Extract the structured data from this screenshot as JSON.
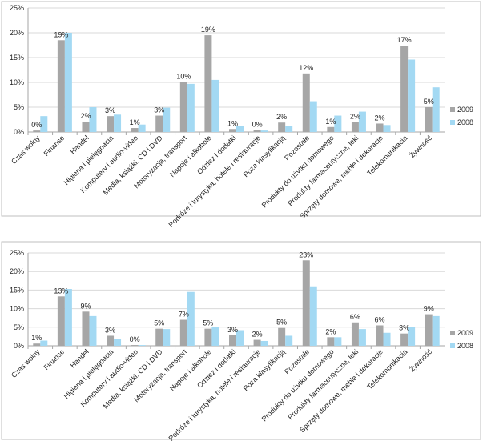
{
  "colors": {
    "series2009": "#a6a6a6",
    "series2008": "#a3d9f3"
  },
  "chart_data": [
    {
      "type": "bar",
      "ylim": [
        0,
        25
      ],
      "yticks": [
        "0%",
        "5%",
        "10%",
        "15%",
        "20%",
        "25%"
      ],
      "categories": [
        "Czas wolny",
        "Finanse",
        "Handel",
        "Higiena i pielęgnacja",
        "Komputery i audio-video",
        "Media, książki, CD i DVD",
        "Motoryzacja, transport",
        "Napoje i alkohole",
        "Odzież i dodatki",
        "Podróże i turystyka, hotele i restauracje",
        "Poza klasyfikacją",
        "Pozostałe",
        "Produkty do użytku domowego",
        "Produkty farmaceutyczne, leki",
        "Sprzęty domowe, meble i dekoracje",
        "Telekomunikacja",
        "Żywność"
      ],
      "series": [
        {
          "name": "2009",
          "values": [
            0.3,
            18.5,
            2.1,
            3.2,
            0.8,
            3.3,
            10.1,
            19.5,
            0.6,
            0.4,
            1.9,
            11.8,
            1.0,
            2.0,
            1.7,
            17.4,
            5.0
          ],
          "labels": [
            "0%",
            "19%",
            "2%",
            "3%",
            "1%",
            "3%",
            "10%",
            "19%",
            "1%",
            "0%",
            "2%",
            "12%",
            "1%",
            "2%",
            "2%",
            "17%",
            "5%"
          ]
        },
        {
          "name": "2008",
          "values": [
            3.2,
            20.0,
            5.0,
            3.5,
            1.5,
            4.9,
            9.7,
            10.5,
            1.2,
            0.3,
            1.2,
            6.2,
            3.3,
            4.1,
            1.4,
            14.6,
            9.0
          ]
        }
      ]
    },
    {
      "type": "bar",
      "ylim": [
        0,
        25
      ],
      "yticks": [
        "0%",
        "5%",
        "10%",
        "15%",
        "20%",
        "25%"
      ],
      "categories": [
        "Czas wolny",
        "Finanse",
        "Handel",
        "Higiena i pielęgnacja",
        "Komputery i audio-video",
        "Media, książki, CD i DVD",
        "Motoryzacja, transport",
        "Napoje i alkohole",
        "Odzież i dodatki",
        "Podróże i turystyka, hotele i restauracje",
        "Poza klasyfikacją",
        "Pozostałe",
        "Produkty do użytku domowego",
        "Produkty farmaceutyczne, leki",
        "Sprzęty domowe, meble i dekoracje",
        "Telekomunikacja",
        "Żywność"
      ],
      "series": [
        {
          "name": "2009",
          "values": [
            0.6,
            13.3,
            9.2,
            2.7,
            0.2,
            4.6,
            7.0,
            4.6,
            2.8,
            1.6,
            4.8,
            23.0,
            2.3,
            6.3,
            5.5,
            3.3,
            8.5
          ],
          "labels": [
            "1%",
            "13%",
            "9%",
            "3%",
            "0%",
            "5%",
            "7%",
            "5%",
            "3%",
            "2%",
            "5%",
            "23%",
            "2%",
            "6%",
            "6%",
            "3%",
            "9%"
          ]
        },
        {
          "name": "2008",
          "values": [
            1.4,
            15.3,
            8.0,
            1.9,
            0.2,
            4.5,
            14.5,
            5.0,
            4.2,
            1.3,
            2.7,
            16.0,
            2.3,
            4.5,
            3.5,
            5.0,
            8.0
          ]
        }
      ]
    }
  ]
}
